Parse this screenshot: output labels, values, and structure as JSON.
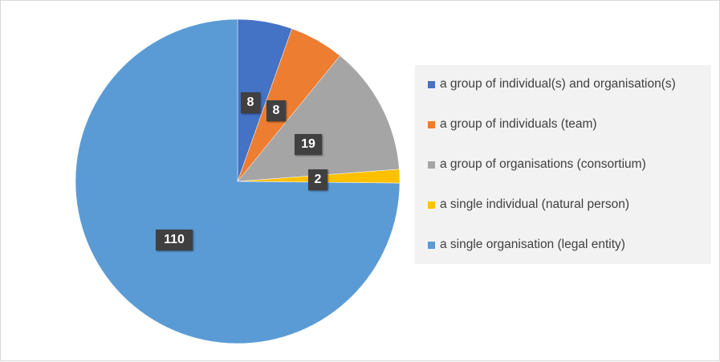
{
  "chart_data": {
    "type": "pie",
    "title": "",
    "legend_position": "right",
    "slices": [
      {
        "label": "a group of individual(s) and organisation(s)",
        "value": 8,
        "value_label": "8",
        "color": "#4472c4"
      },
      {
        "label": "a group of individuals (team)",
        "value": 8,
        "value_label": "8",
        "color": "#ed7d31"
      },
      {
        "label": "a group of organisations (consortium)",
        "value": 19,
        "value_label": "19",
        "color": "#a5a5a5"
      },
      {
        "label": "a single individual (natural person)",
        "value": 2,
        "value_label": "2",
        "color": "#ffc000"
      },
      {
        "label": "a single organisation (legal entity)",
        "value": 110,
        "value_label": "110",
        "color": "#5b9bd5"
      }
    ]
  }
}
